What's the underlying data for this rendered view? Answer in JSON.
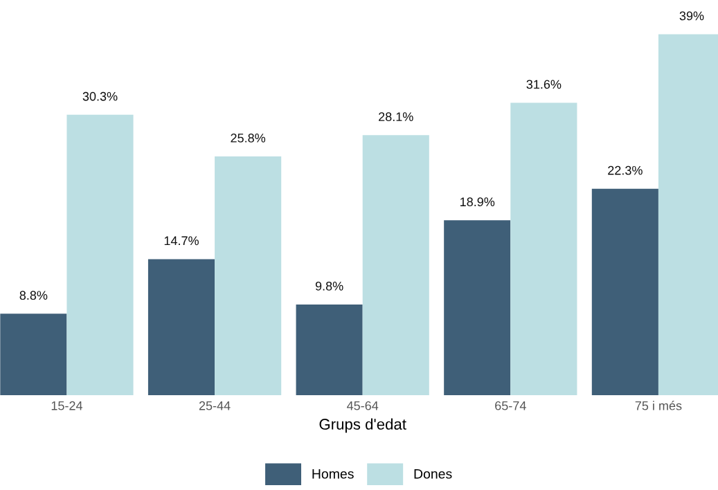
{
  "chart_data": {
    "type": "bar",
    "xlabel": "Grups d'edat",
    "categories": [
      "15-24",
      "25-44",
      "45-64",
      "65-74",
      "75 i més"
    ],
    "series": [
      {
        "name": "Homes",
        "color": "#3f5f78",
        "values": [
          8.8,
          14.7,
          9.8,
          18.9,
          22.3
        ],
        "value_labels": [
          "8.8%",
          "14.7%",
          "9.8%",
          "18.9%",
          "22.3%"
        ]
      },
      {
        "name": "Dones",
        "color": "#bcdfe3",
        "values": [
          30.3,
          25.8,
          28.1,
          31.6,
          39
        ],
        "value_labels": [
          "30.3%",
          "25.8%",
          "28.1%",
          "31.6%",
          "39%"
        ]
      }
    ],
    "grid": false,
    "legend": "bottom"
  }
}
